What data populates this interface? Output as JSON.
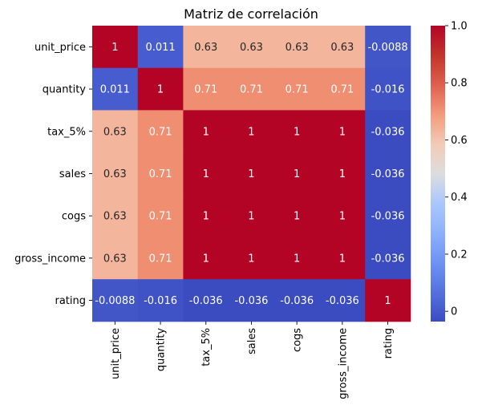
{
  "chart_data": {
    "type": "heatmap",
    "title": "Matriz de correlación",
    "row_labels": [
      "unit_price",
      "quantity",
      "tax_5%",
      "sales",
      "cogs",
      "gross_income",
      "rating"
    ],
    "col_labels": [
      "unit_price",
      "quantity",
      "tax_5%",
      "sales",
      "cogs",
      "gross_income",
      "rating"
    ],
    "values": [
      [
        1,
        0.011,
        0.63,
        0.63,
        0.63,
        0.63,
        -0.0088
      ],
      [
        0.011,
        1,
        0.71,
        0.71,
        0.71,
        0.71,
        -0.016
      ],
      [
        0.63,
        0.71,
        1,
        1,
        1,
        1,
        -0.036
      ],
      [
        0.63,
        0.71,
        1,
        1,
        1,
        1,
        -0.036
      ],
      [
        0.63,
        0.71,
        1,
        1,
        1,
        1,
        -0.036
      ],
      [
        0.63,
        0.71,
        1,
        1,
        1,
        1,
        -0.036
      ],
      [
        -0.0088,
        -0.016,
        -0.036,
        -0.036,
        -0.036,
        -0.036,
        1
      ]
    ],
    "annotations": [
      [
        "1",
        "0.011",
        "0.63",
        "0.63",
        "0.63",
        "0.63",
        "-0.0088"
      ],
      [
        "0.011",
        "1",
        "0.71",
        "0.71",
        "0.71",
        "0.71",
        "-0.016"
      ],
      [
        "0.63",
        "0.71",
        "1",
        "1",
        "1",
        "1",
        "-0.036"
      ],
      [
        "0.63",
        "0.71",
        "1",
        "1",
        "1",
        "1",
        "-0.036"
      ],
      [
        "0.63",
        "0.71",
        "1",
        "1",
        "1",
        "1",
        "-0.036"
      ],
      [
        "0.63",
        "0.71",
        "1",
        "1",
        "1",
        "1",
        "-0.036"
      ],
      [
        "-0.0088",
        "-0.016",
        "-0.036",
        "-0.036",
        "-0.036",
        "-0.036",
        "1"
      ]
    ],
    "colormap": "coolwarm",
    "colorbar": {
      "range": [
        -0.036,
        1
      ],
      "ticks": [
        0,
        0.2,
        0.4,
        0.6,
        0.8,
        1.0
      ],
      "tick_labels": [
        "0",
        "0.2",
        "0.4",
        "0.6",
        "0.8",
        "1.0"
      ]
    }
  }
}
